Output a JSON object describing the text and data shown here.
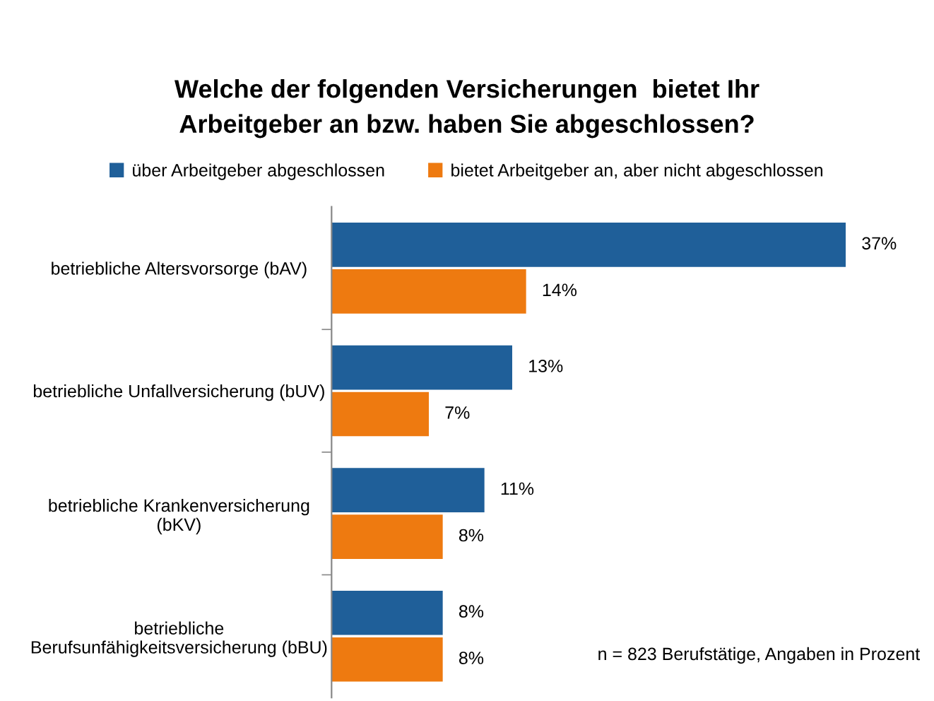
{
  "chart_data": {
    "type": "bar",
    "orientation": "horizontal",
    "title": "Welche der folgenden Versicherungen  bietet Ihr\nArbeitgeber an bzw. haben Sie abgeschlossen?",
    "categories": [
      "betriebliche Altersvorsorge (bAV)",
      "betriebliche Unfallversicherung (bUV)",
      "betriebliche Krankenversicherung\n(bKV)",
      "betriebliche\nBerufsunfähigkeitsversicherung (bBU)"
    ],
    "series": [
      {
        "name": "über Arbeitgeber abgeschlossen",
        "color": "#1f5f99",
        "values": [
          37,
          13,
          11,
          8
        ],
        "value_labels": [
          "37%",
          "13%",
          "11%",
          "8%"
        ]
      },
      {
        "name": "bietet Arbeitgeber an, aber nicht abgeschlossen",
        "color": "#ee7a10",
        "values": [
          14,
          7,
          8,
          8
        ],
        "value_labels": [
          "14%",
          "7%",
          "8%",
          "8%"
        ]
      }
    ],
    "legend": "top",
    "grid": false,
    "annotations": [
      "n = 823 Berufstätige, Angaben in Prozent"
    ]
  }
}
